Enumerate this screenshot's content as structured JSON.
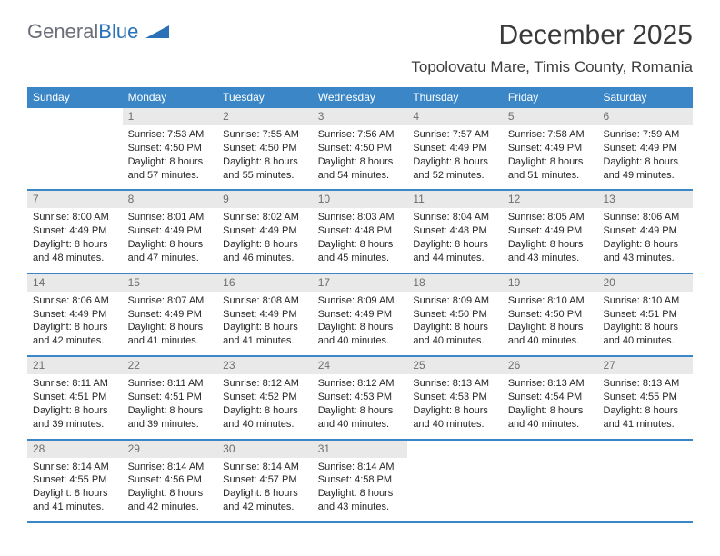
{
  "logo": {
    "text1": "General",
    "text2": "Blue"
  },
  "title": "December 2025",
  "subtitle": "Topolovatu Mare, Timis County, Romania",
  "colors": {
    "header_bg": "#3b86c6",
    "header_text": "#ffffff",
    "daynum_bg": "#e9e9e9",
    "daynum_text": "#6d6d6d",
    "body_text": "#262626",
    "divider": "#3b86c6",
    "background": "#ffffff"
  },
  "typography": {
    "title_fontsize": 30,
    "subtitle_fontsize": 17,
    "header_fontsize": 12,
    "daynum_fontsize": 12,
    "body_fontsize": 11
  },
  "day_headers": [
    "Sunday",
    "Monday",
    "Tuesday",
    "Wednesday",
    "Thursday",
    "Friday",
    "Saturday"
  ],
  "weeks": [
    [
      {
        "num": ""
      },
      {
        "num": "1",
        "sunrise": "Sunrise: 7:53 AM",
        "sunset": "Sunset: 4:50 PM",
        "daylight": "Daylight: 8 hours and 57 minutes."
      },
      {
        "num": "2",
        "sunrise": "Sunrise: 7:55 AM",
        "sunset": "Sunset: 4:50 PM",
        "daylight": "Daylight: 8 hours and 55 minutes."
      },
      {
        "num": "3",
        "sunrise": "Sunrise: 7:56 AM",
        "sunset": "Sunset: 4:50 PM",
        "daylight": "Daylight: 8 hours and 54 minutes."
      },
      {
        "num": "4",
        "sunrise": "Sunrise: 7:57 AM",
        "sunset": "Sunset: 4:49 PM",
        "daylight": "Daylight: 8 hours and 52 minutes."
      },
      {
        "num": "5",
        "sunrise": "Sunrise: 7:58 AM",
        "sunset": "Sunset: 4:49 PM",
        "daylight": "Daylight: 8 hours and 51 minutes."
      },
      {
        "num": "6",
        "sunrise": "Sunrise: 7:59 AM",
        "sunset": "Sunset: 4:49 PM",
        "daylight": "Daylight: 8 hours and 49 minutes."
      }
    ],
    [
      {
        "num": "7",
        "sunrise": "Sunrise: 8:00 AM",
        "sunset": "Sunset: 4:49 PM",
        "daylight": "Daylight: 8 hours and 48 minutes."
      },
      {
        "num": "8",
        "sunrise": "Sunrise: 8:01 AM",
        "sunset": "Sunset: 4:49 PM",
        "daylight": "Daylight: 8 hours and 47 minutes."
      },
      {
        "num": "9",
        "sunrise": "Sunrise: 8:02 AM",
        "sunset": "Sunset: 4:49 PM",
        "daylight": "Daylight: 8 hours and 46 minutes."
      },
      {
        "num": "10",
        "sunrise": "Sunrise: 8:03 AM",
        "sunset": "Sunset: 4:48 PM",
        "daylight": "Daylight: 8 hours and 45 minutes."
      },
      {
        "num": "11",
        "sunrise": "Sunrise: 8:04 AM",
        "sunset": "Sunset: 4:48 PM",
        "daylight": "Daylight: 8 hours and 44 minutes."
      },
      {
        "num": "12",
        "sunrise": "Sunrise: 8:05 AM",
        "sunset": "Sunset: 4:49 PM",
        "daylight": "Daylight: 8 hours and 43 minutes."
      },
      {
        "num": "13",
        "sunrise": "Sunrise: 8:06 AM",
        "sunset": "Sunset: 4:49 PM",
        "daylight": "Daylight: 8 hours and 43 minutes."
      }
    ],
    [
      {
        "num": "14",
        "sunrise": "Sunrise: 8:06 AM",
        "sunset": "Sunset: 4:49 PM",
        "daylight": "Daylight: 8 hours and 42 minutes."
      },
      {
        "num": "15",
        "sunrise": "Sunrise: 8:07 AM",
        "sunset": "Sunset: 4:49 PM",
        "daylight": "Daylight: 8 hours and 41 minutes."
      },
      {
        "num": "16",
        "sunrise": "Sunrise: 8:08 AM",
        "sunset": "Sunset: 4:49 PM",
        "daylight": "Daylight: 8 hours and 41 minutes."
      },
      {
        "num": "17",
        "sunrise": "Sunrise: 8:09 AM",
        "sunset": "Sunset: 4:49 PM",
        "daylight": "Daylight: 8 hours and 40 minutes."
      },
      {
        "num": "18",
        "sunrise": "Sunrise: 8:09 AM",
        "sunset": "Sunset: 4:50 PM",
        "daylight": "Daylight: 8 hours and 40 minutes."
      },
      {
        "num": "19",
        "sunrise": "Sunrise: 8:10 AM",
        "sunset": "Sunset: 4:50 PM",
        "daylight": "Daylight: 8 hours and 40 minutes."
      },
      {
        "num": "20",
        "sunrise": "Sunrise: 8:10 AM",
        "sunset": "Sunset: 4:51 PM",
        "daylight": "Daylight: 8 hours and 40 minutes."
      }
    ],
    [
      {
        "num": "21",
        "sunrise": "Sunrise: 8:11 AM",
        "sunset": "Sunset: 4:51 PM",
        "daylight": "Daylight: 8 hours and 39 minutes."
      },
      {
        "num": "22",
        "sunrise": "Sunrise: 8:11 AM",
        "sunset": "Sunset: 4:51 PM",
        "daylight": "Daylight: 8 hours and 39 minutes."
      },
      {
        "num": "23",
        "sunrise": "Sunrise: 8:12 AM",
        "sunset": "Sunset: 4:52 PM",
        "daylight": "Daylight: 8 hours and 40 minutes."
      },
      {
        "num": "24",
        "sunrise": "Sunrise: 8:12 AM",
        "sunset": "Sunset: 4:53 PM",
        "daylight": "Daylight: 8 hours and 40 minutes."
      },
      {
        "num": "25",
        "sunrise": "Sunrise: 8:13 AM",
        "sunset": "Sunset: 4:53 PM",
        "daylight": "Daylight: 8 hours and 40 minutes."
      },
      {
        "num": "26",
        "sunrise": "Sunrise: 8:13 AM",
        "sunset": "Sunset: 4:54 PM",
        "daylight": "Daylight: 8 hours and 40 minutes."
      },
      {
        "num": "27",
        "sunrise": "Sunrise: 8:13 AM",
        "sunset": "Sunset: 4:55 PM",
        "daylight": "Daylight: 8 hours and 41 minutes."
      }
    ],
    [
      {
        "num": "28",
        "sunrise": "Sunrise: 8:14 AM",
        "sunset": "Sunset: 4:55 PM",
        "daylight": "Daylight: 8 hours and 41 minutes."
      },
      {
        "num": "29",
        "sunrise": "Sunrise: 8:14 AM",
        "sunset": "Sunset: 4:56 PM",
        "daylight": "Daylight: 8 hours and 42 minutes."
      },
      {
        "num": "30",
        "sunrise": "Sunrise: 8:14 AM",
        "sunset": "Sunset: 4:57 PM",
        "daylight": "Daylight: 8 hours and 42 minutes."
      },
      {
        "num": "31",
        "sunrise": "Sunrise: 8:14 AM",
        "sunset": "Sunset: 4:58 PM",
        "daylight": "Daylight: 8 hours and 43 minutes."
      },
      {
        "num": ""
      },
      {
        "num": ""
      },
      {
        "num": ""
      }
    ]
  ]
}
